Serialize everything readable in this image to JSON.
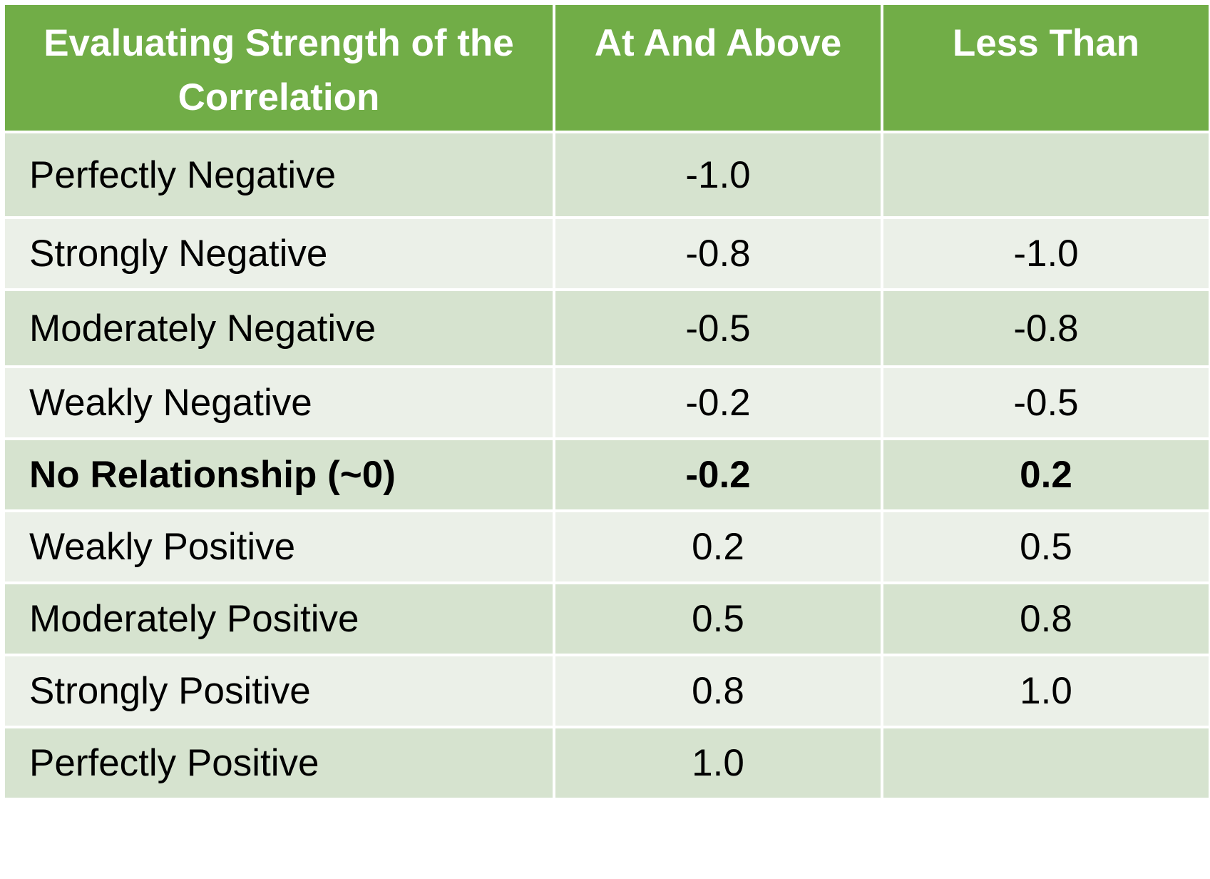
{
  "table": {
    "headers": [
      "Evaluating Strength of the Correlation",
      "At And Above",
      "Less Than"
    ],
    "rows": [
      {
        "label": "Perfectly Negative",
        "at_and_above": "-1.0",
        "less_than": "",
        "bold": false
      },
      {
        "label": "Strongly Negative",
        "at_and_above": "-0.8",
        "less_than": "-1.0",
        "bold": false
      },
      {
        "label": "Moderately Negative",
        "at_and_above": "-0.5",
        "less_than": "-0.8",
        "bold": false
      },
      {
        "label": "Weakly Negative",
        "at_and_above": "-0.2",
        "less_than": "-0.5",
        "bold": false
      },
      {
        "label": "No Relationship (~0)",
        "at_and_above": "-0.2",
        "less_than": "0.2",
        "bold": true
      },
      {
        "label": "Weakly Positive",
        "at_and_above": "0.2",
        "less_than": "0.5",
        "bold": false
      },
      {
        "label": "Moderately Positive",
        "at_and_above": "0.5",
        "less_than": "0.8",
        "bold": false
      },
      {
        "label": "Strongly Positive",
        "at_and_above": "0.8",
        "less_than": "1.0",
        "bold": false
      },
      {
        "label": "Perfectly Positive",
        "at_and_above": "1.0",
        "less_than": "",
        "bold": false
      }
    ],
    "colors": {
      "header_bg": "#71ad47",
      "header_text": "#ffffff",
      "row_dark": "#d6e3cf",
      "row_light": "#ebf0e8"
    }
  }
}
